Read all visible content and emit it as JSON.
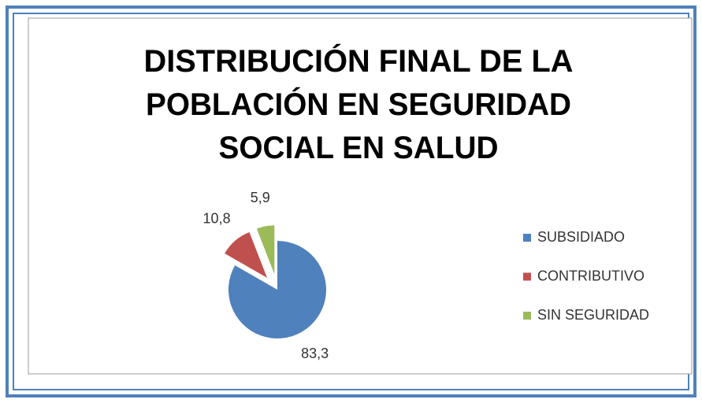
{
  "chart_data": {
    "type": "pie",
    "title": "DISTRIBUCIÓN FINAL  DE LA\nPOBLACIÓN EN SEGURIDAD\nSOCIAL EN SALUD",
    "categories": [
      "SUBSIDIADO",
      "CONTRIBUTIVO",
      "SIN SEGURIDAD"
    ],
    "values": [
      83.3,
      10.8,
      5.9
    ],
    "value_labels": [
      "83,3",
      "10,8",
      "5,9"
    ],
    "colors": [
      "#4f81bd",
      "#c0504d",
      "#9bbb59"
    ],
    "exploded": [
      false,
      true,
      true
    ],
    "legend": "right"
  }
}
